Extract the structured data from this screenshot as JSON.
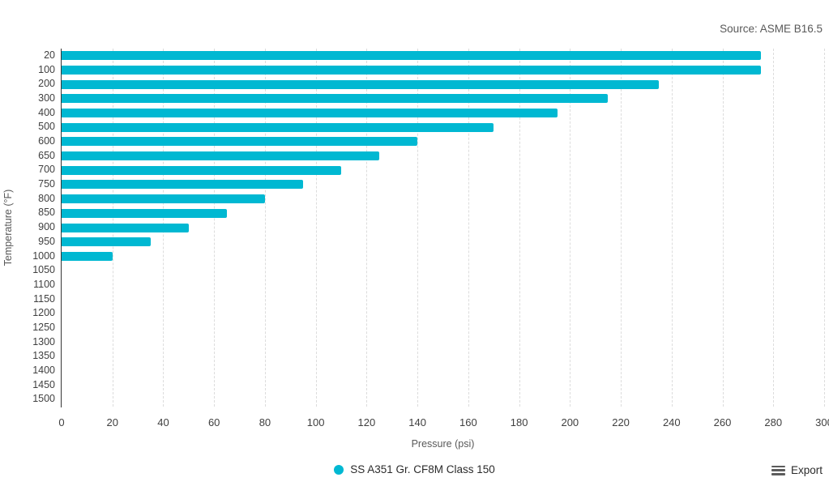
{
  "source_note": "Source: ASME B16.5",
  "legend": {
    "series_label": "SS A351 Gr. CF8M Class 150"
  },
  "export": {
    "label": "Export"
  },
  "colors": {
    "bar": "#00b8d2",
    "axis_line": "#363636",
    "gridline": "#dcdcdc",
    "tick_text": "#3f3f3f",
    "muted_text": "#595959"
  },
  "chart_data": {
    "type": "bar",
    "orientation": "horizontal",
    "title": "",
    "subtitle": "",
    "annotation": "Source: ASME B16.5",
    "xlabel": "Pressure (psi)",
    "ylabel": "Temperature (°F)",
    "series_name": "SS A351 Gr. CF8M Class 150",
    "categories": [
      "20",
      "100",
      "200",
      "300",
      "400",
      "500",
      "600",
      "650",
      "700",
      "750",
      "800",
      "850",
      "900",
      "950",
      "1000",
      "1050",
      "1100",
      "1150",
      "1200",
      "1250",
      "1300",
      "1350",
      "1400",
      "1450",
      "1500"
    ],
    "values": [
      275,
      275,
      235,
      215,
      195,
      170,
      140,
      125,
      110,
      95,
      80,
      65,
      50,
      35,
      20,
      0,
      0,
      0,
      0,
      0,
      0,
      0,
      0,
      0,
      0
    ],
    "xlim": [
      0,
      300
    ],
    "xticks": [
      0,
      20,
      40,
      60,
      80,
      100,
      120,
      140,
      160,
      180,
      200,
      220,
      240,
      260,
      280,
      300
    ],
    "grid": "dashed-vertical",
    "legend_position": "bottom-center",
    "bar_color": "#00b8d2"
  }
}
